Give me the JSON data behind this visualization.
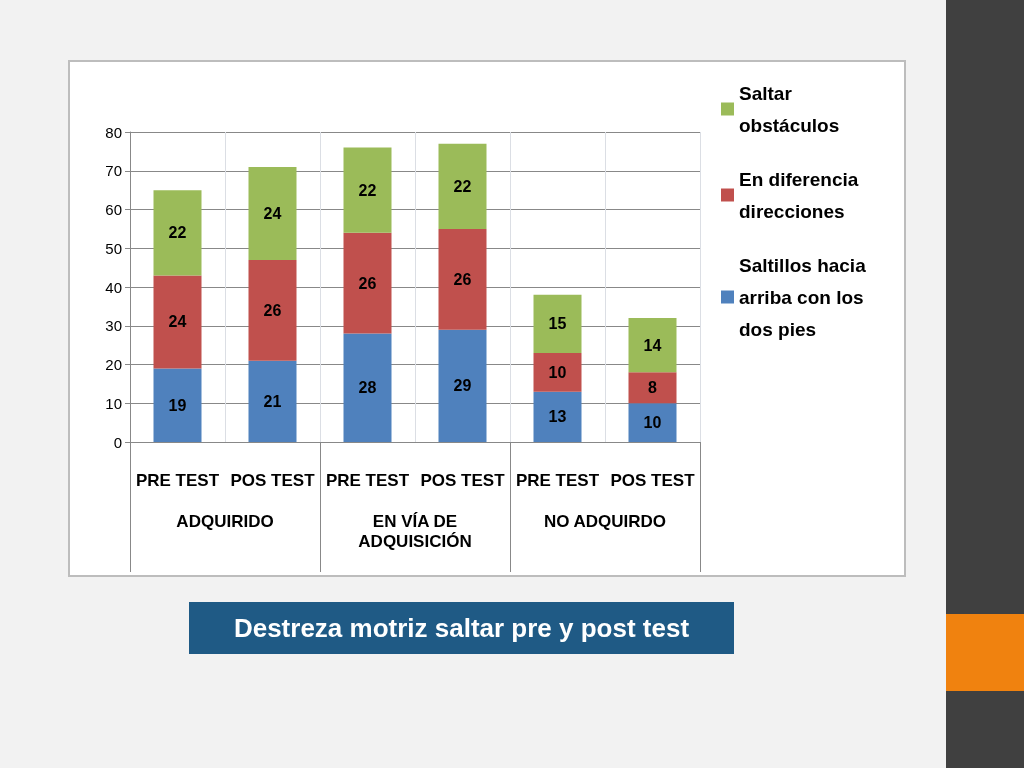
{
  "chart_data": {
    "type": "bar",
    "title": "Destreza motriz saltar pre y post test",
    "categories": [
      "PRE TEST",
      "POS TEST",
      "PRE TEST",
      "POS TEST",
      "PRE TEST",
      "POS TEST"
    ],
    "annotations": [
      "ADQUIRIDO",
      "EN VÍA DE ADQUISICIÓN",
      "NO ADQUIRDO"
    ],
    "series": [
      {
        "name": "Saltillos hacia arriba con los dos pies",
        "color": "#4f81bd",
        "values": [
          19,
          21,
          28,
          29,
          13,
          10
        ]
      },
      {
        "name": "En diferencia direcciones",
        "color": "#c0504d",
        "values": [
          24,
          26,
          26,
          26,
          10,
          8
        ]
      },
      {
        "name": "Saltar obstáculos",
        "color": "#9bbb59",
        "values": [
          22,
          24,
          22,
          22,
          15,
          14
        ]
      }
    ],
    "stacked": true,
    "data_labels": true,
    "ylim": [
      0,
      80
    ],
    "yticks": [
      0,
      10,
      20,
      30,
      40,
      50,
      60,
      70,
      80
    ],
    "grid": true,
    "legend": "right"
  }
}
